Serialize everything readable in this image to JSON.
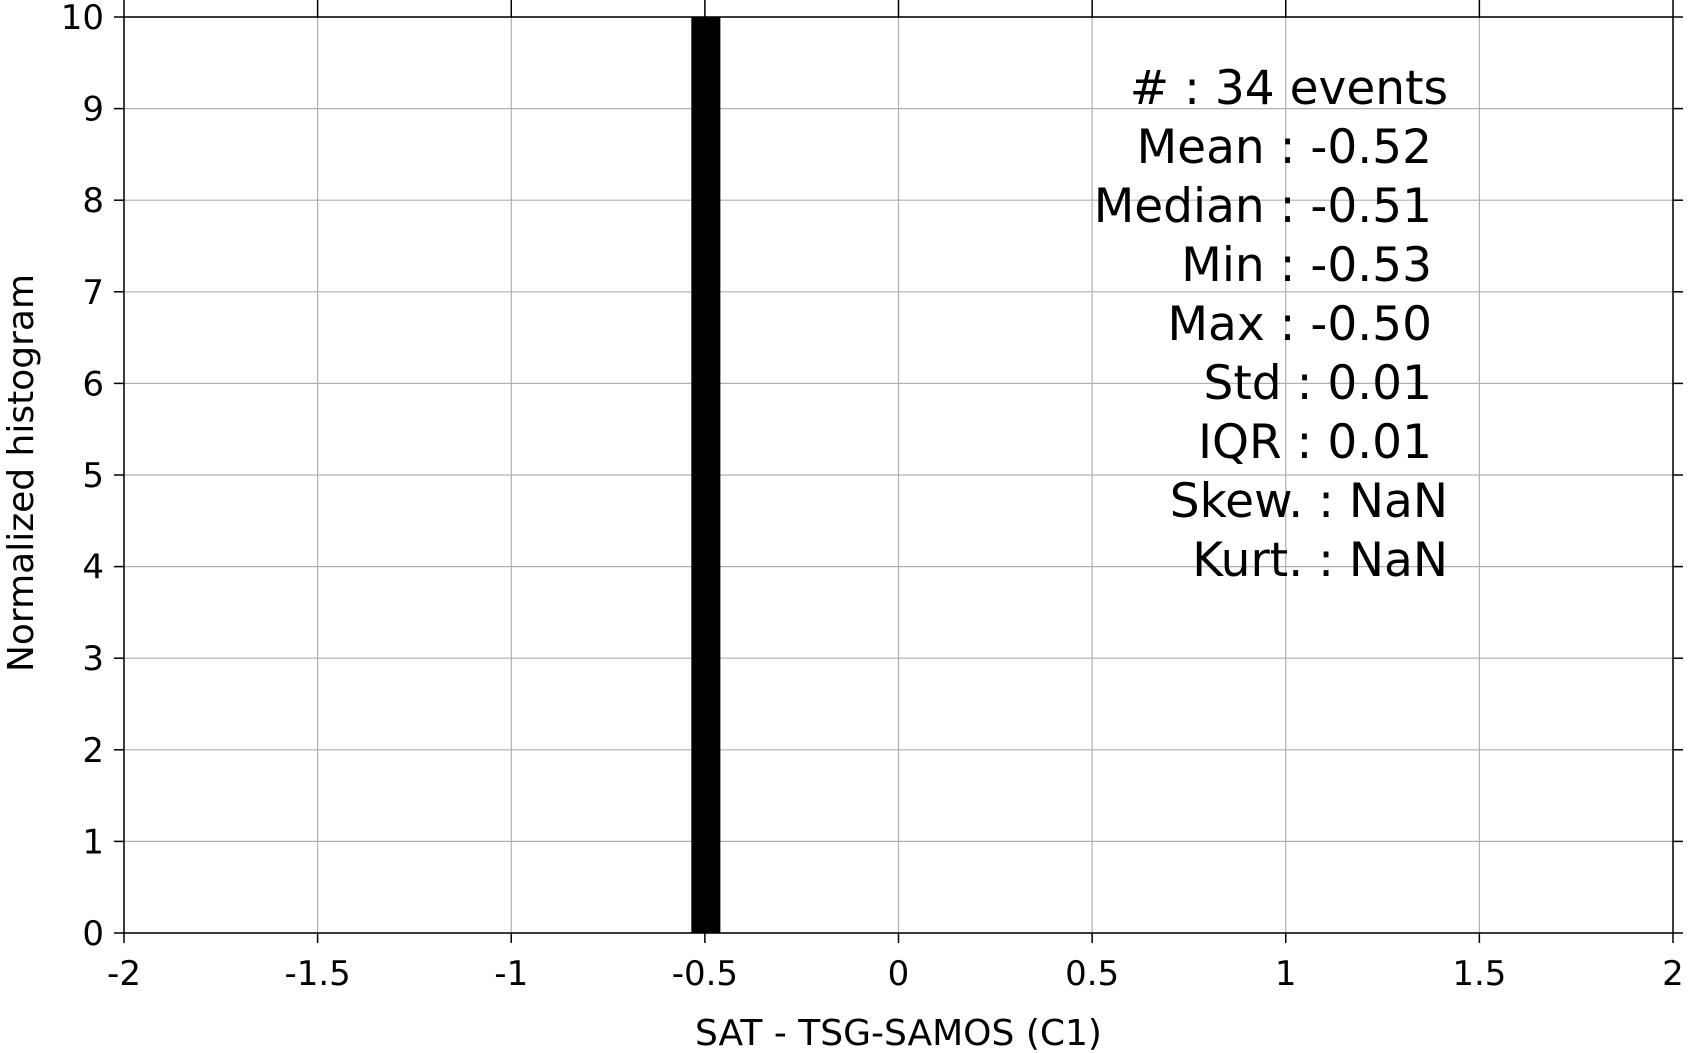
{
  "chart_data": {
    "type": "bar",
    "title": "",
    "xlabel": "SAT - TSG-SAMOS (C1)",
    "ylabel": "Normalized histogram",
    "xlim": [
      -2,
      2
    ],
    "ylim": [
      0,
      10
    ],
    "grid": true,
    "x_ticks": [
      -2,
      -1.5,
      -1,
      -0.5,
      0,
      0.5,
      1,
      1.5,
      2
    ],
    "x_tick_labels": [
      "-2",
      "-1.5",
      "-1",
      "-0.5",
      "0",
      "0.5",
      "1",
      "1.5",
      "2"
    ],
    "y_ticks": [
      0,
      1,
      2,
      3,
      4,
      5,
      6,
      7,
      8,
      9,
      10
    ],
    "y_tick_labels": [
      "0",
      "1",
      "2",
      "3",
      "4",
      "5",
      "6",
      "7",
      "8",
      "9",
      "10"
    ],
    "bins": [
      {
        "x0": -0.535,
        "x1": -0.46,
        "value": 10
      }
    ],
    "bar_color": "#000000",
    "stats": [
      {
        "label": "#  : 34 events"
      },
      {
        "label": "Mean : -0.52"
      },
      {
        "label": "Median : -0.51"
      },
      {
        "label": "Min : -0.53"
      },
      {
        "label": "Max : -0.50"
      },
      {
        "label": "Std : 0.01"
      },
      {
        "label": "IQR : 0.01"
      },
      {
        "label": "Skew. : NaN"
      },
      {
        "label": "Kurt. : NaN"
      }
    ]
  }
}
